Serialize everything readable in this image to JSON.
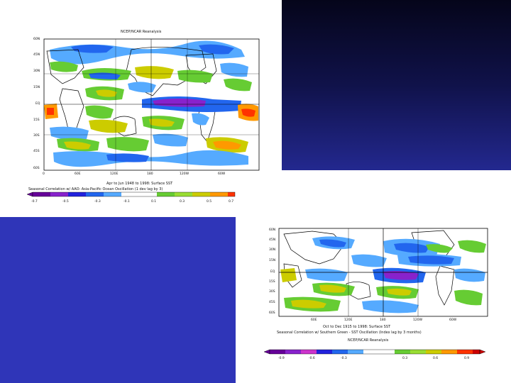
{
  "map1": {
    "title": "NCEP/NCAR Reanalysis",
    "lat_labels": [
      "60N",
      "45N",
      "30N",
      "15N",
      "EQ",
      "15S",
      "30S",
      "45S",
      "60S"
    ],
    "lon_labels": [
      "0",
      "60E",
      "120E",
      "180",
      "120W",
      "60W"
    ],
    "caption_line1": "Apr to Jun 1948 to 1998: Surface SST",
    "caption_line2": "Seasonal Correlation w/ AAO: Asia-Pacific Ocean Oscillation (1 dev lag by 3)",
    "colorbar_labels": [
      "-0.7",
      "-0.5",
      "-0.3",
      "-0.1",
      "0.1",
      "0.3",
      "0.5",
      "0.7"
    ]
  },
  "map2": {
    "lat_labels": [
      "60N",
      "45N",
      "30N",
      "15N",
      "EQ",
      "15S",
      "30S",
      "45S",
      "60S"
    ],
    "lon_labels": [
      "60E",
      "120E",
      "180",
      "120W",
      "60W"
    ],
    "caption_line1": "Oct to Dec 1915 to 1998: Surface SST",
    "caption_line2": "Seasonal Correlation w/ Southern Green - SST Oscillation (Index lag by 3 months)",
    "caption_line3": "NCEP/NCAR Reanalysis",
    "colorbar_labels": [
      "-0.9",
      "-0.6",
      "-0.3",
      "0.3",
      "0.6",
      "0.9"
    ]
  },
  "colors": {
    "dark_panel_top": "#05051a",
    "dark_panel_bottom": "#23288f",
    "blue_panel": "#2f35b8",
    "positive_low": "#66cc33",
    "positive_mid": "#cccc00",
    "positive_high": "#ff9900",
    "negative_low": "#55aaff",
    "negative_mid": "#2266ee",
    "negative_high": "#8822cc"
  }
}
